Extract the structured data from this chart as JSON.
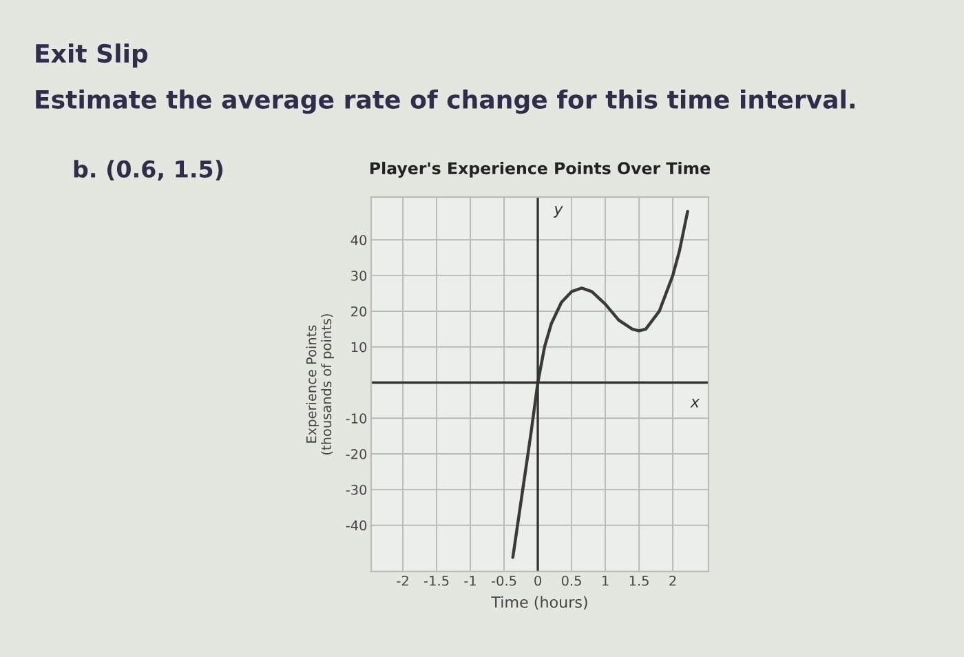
{
  "chart_data": {
    "type": "line",
    "title": "Player's Experience Points Over Time",
    "xlabel": "Time (hours)",
    "ylabel": "Experience Points\n(thousands of points)",
    "annotations": [
      "Exit Slip",
      "Estimate the average rate of change for this time interval.",
      "b. (0.6, 1.5)",
      "x",
      "y"
    ],
    "x": [
      -0.37,
      -0.2,
      -0.1,
      0,
      0.1,
      0.2,
      0.35,
      0.5,
      0.65,
      0.8,
      1.0,
      1.2,
      1.4,
      1.5,
      1.6,
      1.8,
      2.0,
      2.1,
      2.22
    ],
    "series": [
      {
        "color": "#3a3a3a",
        "values": [
          -49,
          -27,
          -14,
          0,
          10,
          16.5,
          22.5,
          25.5,
          26.5,
          25.5,
          22,
          17.5,
          15,
          14.5,
          15,
          20,
          30,
          37,
          48
        ]
      }
    ],
    "xlim": [
      -2.47,
      2.53
    ],
    "ylim": [
      -53,
      52
    ],
    "xticks": [
      -2,
      -1.5,
      -1,
      -0.5,
      0,
      0.5,
      1,
      1.5,
      2
    ],
    "yticks": [
      -40,
      -30,
      -20,
      -10,
      10,
      20,
      30,
      40
    ],
    "grid": true,
    "marker": "none",
    "line_style": "solid",
    "legend": false
  }
}
